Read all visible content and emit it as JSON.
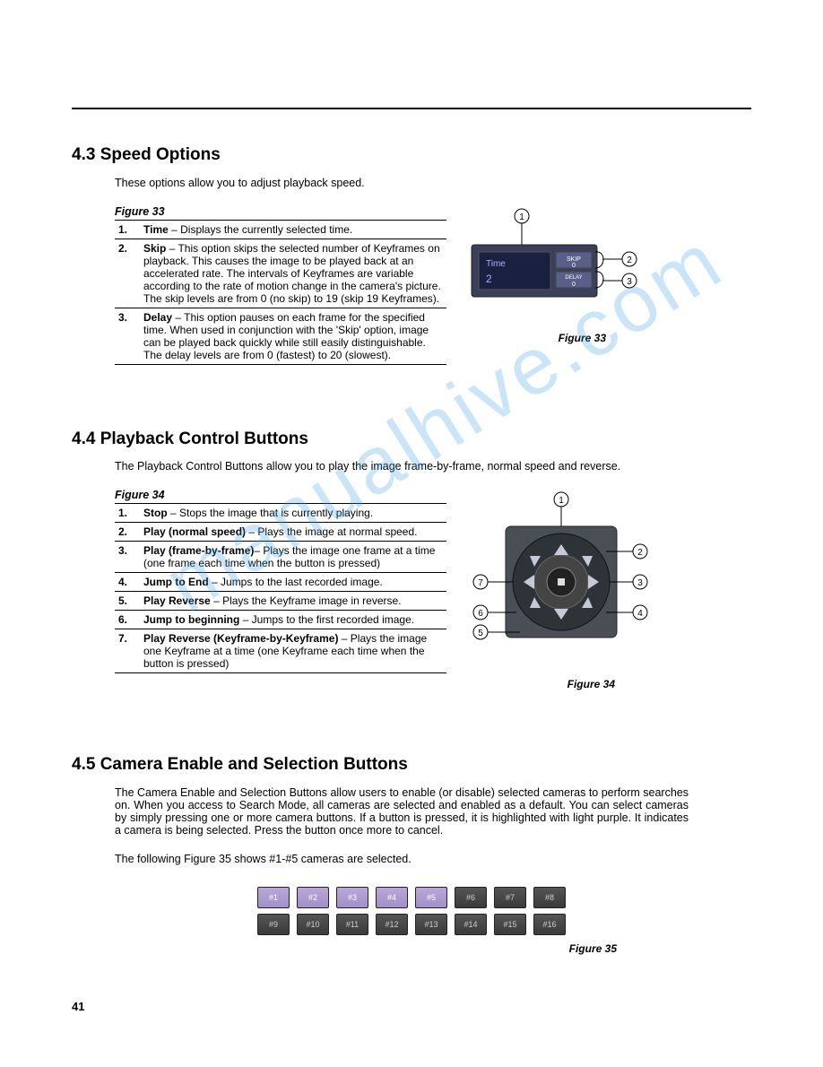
{
  "sections": {
    "s43": {
      "heading": "4.3 Speed Options",
      "intro": "These options allow you to adjust playback speed.",
      "figLabel": "Figure 33",
      "items": [
        {
          "num": "1.",
          "term": "Time",
          "desc": " – Displays the currently selected time."
        },
        {
          "num": "2.",
          "term": "Skip",
          "desc": " – This option skips the selected number of Keyframes on playback. This causes the image to be played back at an accelerated rate. The intervals of Keyframes are variable according to the rate of motion change in the camera's picture. The skip levels are from 0 (no skip) to 19 (skip 19 Keyframes)."
        },
        {
          "num": "3.",
          "term": "Delay",
          "desc": " – This option pauses on each frame for the specified time. When used in conjunction with the 'Skip' option, image can be played back quickly while still easily distinguishable. The delay levels are from 0 (fastest) to 20 (slowest)."
        }
      ],
      "caption": "Figure 33",
      "panel": {
        "timeLabel": "Time",
        "timeVal": "2",
        "skipLabel": "SKIP",
        "skipVal": "0",
        "delayLabel": "DELAY",
        "delayVal": "0"
      }
    },
    "s44": {
      "heading": "4.4 Playback Control Buttons",
      "intro": "The Playback Control Buttons allow you to play the image frame-by-frame, normal speed and reverse.",
      "figLabel": "Figure 34",
      "items": [
        {
          "num": "1.",
          "term": "Stop",
          "desc": " – Stops the image that is currently playing."
        },
        {
          "num": "2.",
          "term": "Play (normal speed)",
          "desc": " – Plays the image at normal speed."
        },
        {
          "num": "3.",
          "term": "Play (frame-by-frame)",
          "desc": "– Plays the image one frame at a time (one frame each time when the button is pressed)"
        },
        {
          "num": "4.",
          "term": "Jump to End",
          "desc": " – Jumps to the last recorded image."
        },
        {
          "num": "5.",
          "term": "Play Reverse",
          "desc": " – Plays the Keyframe image in reverse."
        },
        {
          "num": "6.",
          "term": "Jump to beginning",
          "desc": " – Jumps to the first recorded image."
        },
        {
          "num": "7.",
          "term": "Play Reverse (Keyframe-by-Keyframe)",
          "desc": " – Plays the image one Keyframe at a time (one Keyframe each time when the button is pressed)"
        }
      ],
      "caption": "Figure 34"
    },
    "s45": {
      "heading": "4.5 Camera Enable and Selection Buttons",
      "para1": "The Camera Enable and Selection Buttons allow users to enable (or disable) selected cameras to perform searches on. When you access to Search Mode, all cameras are selected and enabled as a default. You can select cameras by simply pressing one or more camera buttons. If a button is pressed, it is highlighted with light purple. It indicates a camera is being selected. Press the button once more to cancel.",
      "para2": "The following Figure 35 shows #1-#5 cameras are selected.",
      "caption": "Figure 35",
      "cameras_row1": [
        {
          "label": "#1",
          "sel": true
        },
        {
          "label": "#2",
          "sel": true
        },
        {
          "label": "#3",
          "sel": true
        },
        {
          "label": "#4",
          "sel": true
        },
        {
          "label": "#5",
          "sel": true
        },
        {
          "label": "#6",
          "sel": false
        },
        {
          "label": "#7",
          "sel": false
        },
        {
          "label": "#8",
          "sel": false
        }
      ],
      "cameras_row2": [
        {
          "label": "#9",
          "sel": false
        },
        {
          "label": "#10",
          "sel": false
        },
        {
          "label": "#11",
          "sel": false
        },
        {
          "label": "#12",
          "sel": false
        },
        {
          "label": "#13",
          "sel": false
        },
        {
          "label": "#14",
          "sel": false
        },
        {
          "label": "#15",
          "sel": false
        },
        {
          "label": "#16",
          "sel": false
        }
      ]
    }
  },
  "watermark": "manualhive.com",
  "pageNumber": "41"
}
